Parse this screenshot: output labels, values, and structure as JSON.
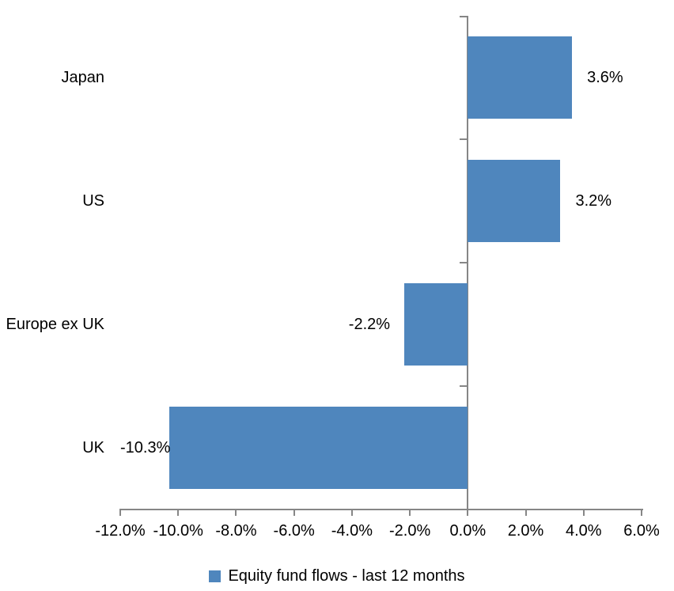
{
  "chart_data": {
    "type": "bar",
    "orientation": "horizontal",
    "title": "",
    "xlabel": "",
    "ylabel": "",
    "categories": [
      "Japan",
      "US",
      "Europe ex UK",
      "UK"
    ],
    "values": [
      3.6,
      3.2,
      -2.2,
      -10.3
    ],
    "data_labels": [
      "3.6%",
      "3.2%",
      "-2.2%",
      "-10.3%"
    ],
    "xlim": [
      -12,
      6
    ],
    "x_tick_values": [
      -12,
      -10,
      -8,
      -6,
      -4,
      -2,
      0,
      2,
      4,
      6
    ],
    "x_tick_labels": [
      "-12.0%",
      "-10.0%",
      "-8.0%",
      "-6.0%",
      "-4.0%",
      "-2.0%",
      "0.0%",
      "2.0%",
      "4.0%",
      "6.0%"
    ],
    "grid": false,
    "legend": {
      "position": "bottom",
      "label": "Equity fund flows - last 12 months"
    },
    "series": [
      {
        "name": "Equity fund flows - last 12 months",
        "values": [
          3.6,
          3.2,
          -2.2,
          -10.3
        ]
      }
    ],
    "colors": {
      "bar": "#4F86BD",
      "axis": "#868686",
      "text": "#000000"
    }
  }
}
